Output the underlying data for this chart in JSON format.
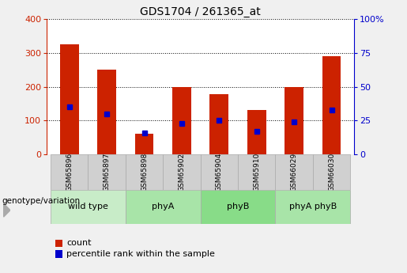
{
  "title": "GDS1704 / 261365_at",
  "samples": [
    "GSM65896",
    "GSM65897",
    "GSM65898",
    "GSM65902",
    "GSM65904",
    "GSM65910",
    "GSM66029",
    "GSM66030"
  ],
  "count_values": [
    325,
    250,
    60,
    200,
    178,
    130,
    200,
    290
  ],
  "percentile_values": [
    35,
    30,
    16,
    23,
    25,
    17,
    24,
    33
  ],
  "groups": [
    {
      "label": "wild type",
      "start": 0,
      "end": 2,
      "color": "#c8ecc8"
    },
    {
      "label": "phyA",
      "start": 2,
      "end": 4,
      "color": "#a8e4a8"
    },
    {
      "label": "phyB",
      "start": 4,
      "end": 6,
      "color": "#88dc88"
    },
    {
      "label": "phyA phyB",
      "start": 6,
      "end": 8,
      "color": "#a8e4a8"
    }
  ],
  "bar_color": "#cc2200",
  "dot_color": "#0000cc",
  "ylim_left": [
    0,
    400
  ],
  "ylim_right": [
    0,
    100
  ],
  "yticks_left": [
    0,
    100,
    200,
    300,
    400
  ],
  "yticks_right": [
    0,
    25,
    50,
    75,
    100
  ],
  "ytick_labels_right": [
    "0",
    "25",
    "50",
    "75",
    "100%"
  ],
  "left_axis_color": "#cc2200",
  "right_axis_color": "#0000cc",
  "plot_bg_color": "#ffffff",
  "fig_bg_color": "#f0f0f0",
  "sample_box_color": "#d0d0d0",
  "sample_box_edge": "#aaaaaa",
  "group_box_edge": "#aaaaaa",
  "legend_count_label": "count",
  "legend_pct_label": "percentile rank within the sample",
  "genotype_label": "genotype/variation"
}
